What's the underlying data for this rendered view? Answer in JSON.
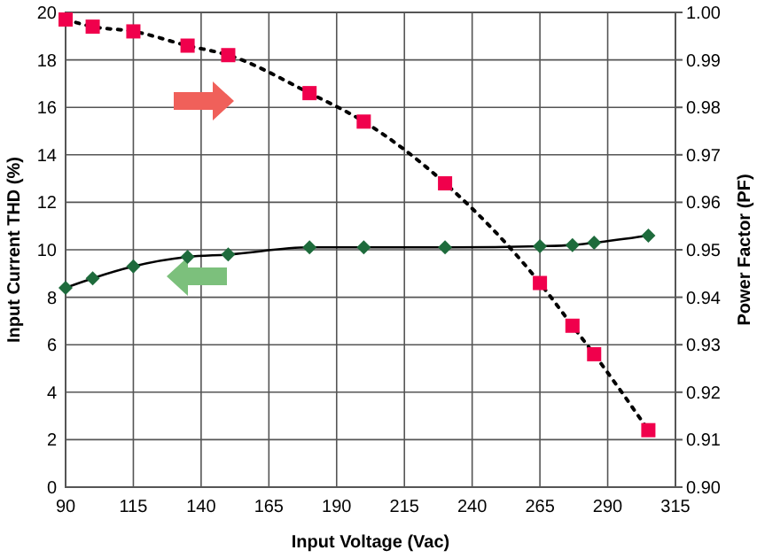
{
  "chart_data": {
    "type": "line",
    "xlabel": "Input Voltage (Vac)",
    "ylabel": "Input Current THD (%)",
    "y2label": "Power Factor (PF)",
    "xlim": [
      90,
      315
    ],
    "xticks": [
      90,
      115,
      140,
      165,
      190,
      215,
      240,
      265,
      290,
      315
    ],
    "ylim": [
      0,
      20
    ],
    "yticks": [
      0,
      2,
      4,
      6,
      8,
      10,
      12,
      14,
      16,
      18,
      20
    ],
    "y2lim": [
      0.9,
      1.0
    ],
    "y2ticks": [
      {
        "value": 0.9,
        "label": "0.90"
      },
      0.91,
      0.92,
      0.93,
      0.94,
      0.95,
      0.96,
      0.97,
      0.98,
      0.99,
      {
        "value": 1.0,
        "label": "1.00"
      }
    ],
    "grid": true,
    "series": [
      {
        "color": "#1e6b3c",
        "marker": "diamond",
        "line_style": "solid",
        "x": [
          90,
          100,
          115,
          135,
          150,
          180,
          200,
          230,
          265,
          277,
          285,
          305
        ],
        "values": [
          8.4,
          8.8,
          9.3,
          9.7,
          9.8,
          10.1,
          10.1,
          10.1,
          10.15,
          10.2,
          10.3,
          10.6
        ]
      },
      {
        "color": "#f0004c",
        "marker": "square",
        "line_style": "dotted",
        "axis": "y2",
        "x": [
          90,
          100,
          115,
          135,
          150,
          180,
          200,
          230,
          265,
          277,
          285,
          305
        ],
        "values": [
          0.9985,
          0.997,
          0.996,
          0.993,
          0.991,
          0.983,
          0.977,
          0.964,
          0.943,
          0.934,
          0.928,
          0.912
        ]
      }
    ]
  }
}
